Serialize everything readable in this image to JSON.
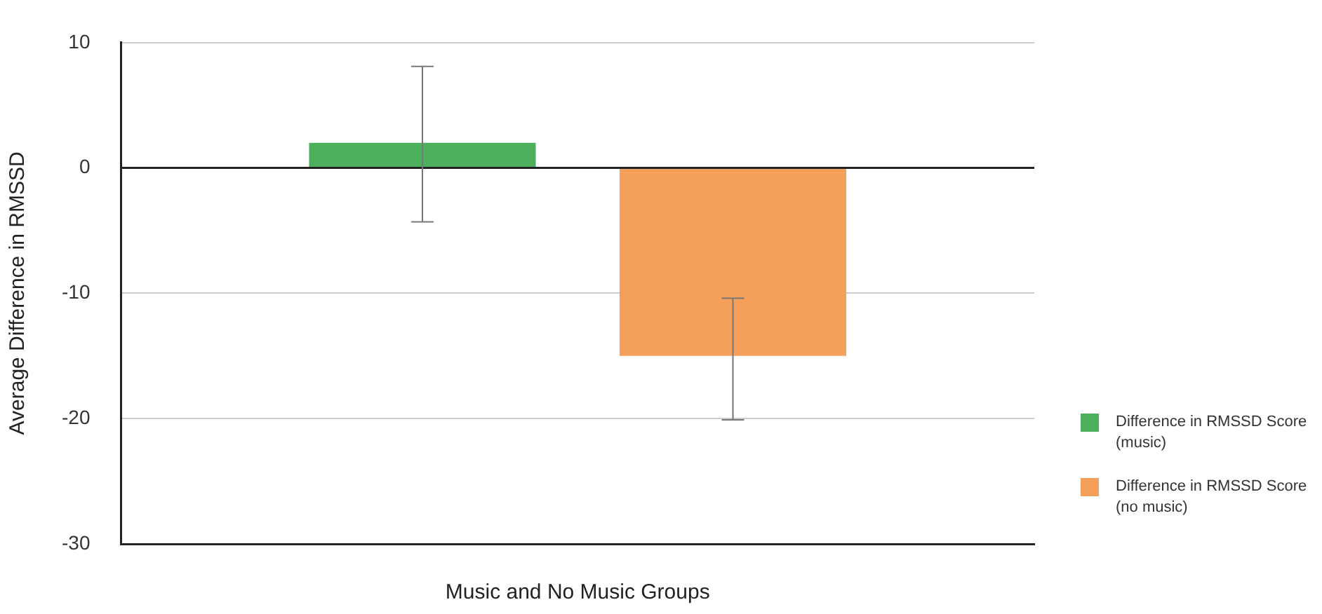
{
  "chart_data": {
    "type": "bar",
    "xlabel": "Music and No Music Groups",
    "ylabel": "Average Difference in RMSSD",
    "categories": [
      null
    ],
    "series": [
      {
        "name": "Difference in RMSSD Score (music)",
        "color": "#4caf5c",
        "values": [
          2
        ],
        "errors": [
          [
            -4.3,
            8.1
          ]
        ]
      },
      {
        "name": "Difference in RMSSD Score (no music)",
        "color": "#f5a05a",
        "values": [
          -15
        ],
        "errors": [
          [
            -20.1,
            -10.4
          ]
        ]
      }
    ],
    "ylim": [
      -30,
      10
    ],
    "yticks": [
      10,
      0,
      -10,
      -20,
      -30
    ],
    "grid": "y",
    "legend": "bottom right"
  }
}
